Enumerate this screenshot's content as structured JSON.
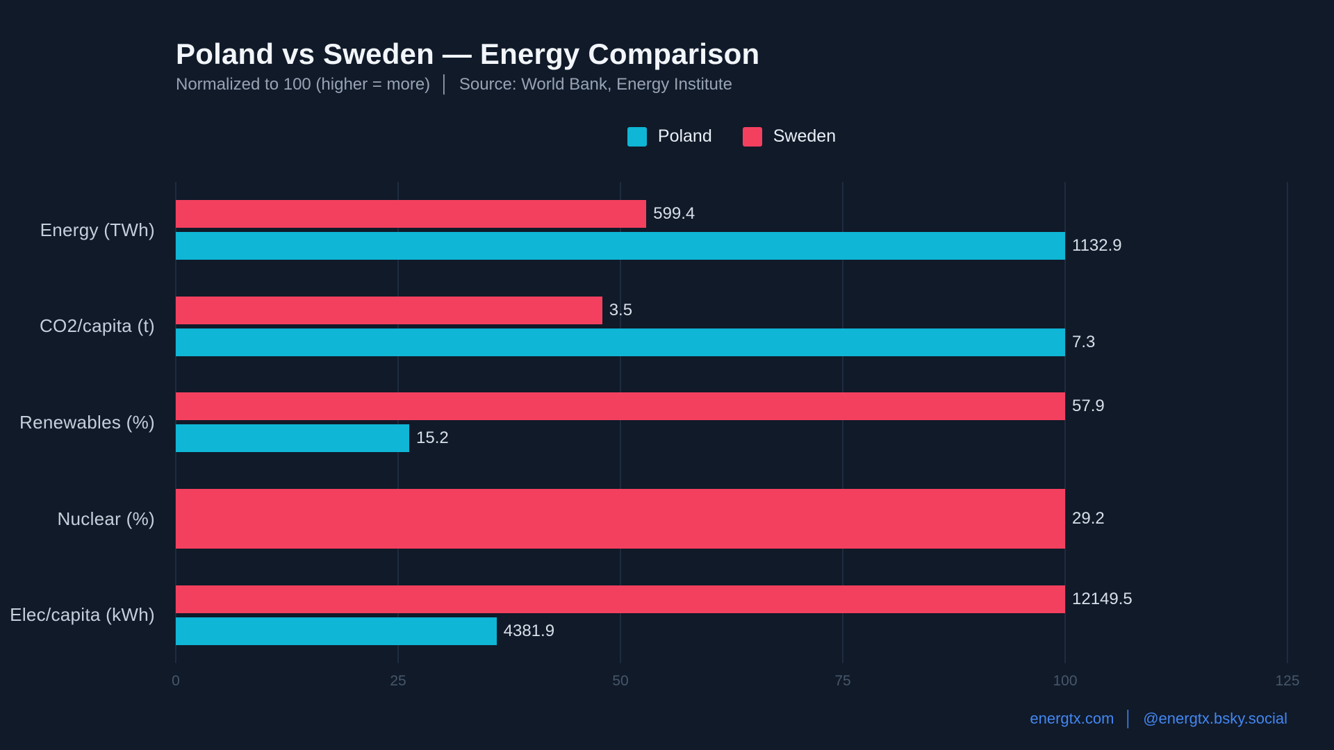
{
  "page": {
    "background": "#101a29"
  },
  "header": {
    "title": "Poland vs Sweden — Energy Comparison",
    "subtitle": "Normalized to 100 (higher = more)  │  Source: World Bank, Energy Institute"
  },
  "legend": {
    "items": [
      {
        "label": "Poland",
        "color": "#0fb6d5"
      },
      {
        "label": "Sweden",
        "color": "#f4405f"
      }
    ]
  },
  "footer": {
    "site": "energtx.com",
    "separator": "│",
    "handle": "@energtx.bsky.social",
    "link_color": "#4486f0"
  },
  "chart_data": {
    "type": "bar",
    "orientation": "horizontal",
    "title": "Poland vs Sweden — Energy Comparison",
    "subtitle": "Normalized to 100 (higher = more) │ Source: World Bank, Energy Institute",
    "categories": [
      "Energy (TWh)",
      "CO2/capita (t)",
      "Renewables (%)",
      "Nuclear (%)",
      "Elec/capita (kWh)"
    ],
    "series": [
      {
        "name": "Poland",
        "color": "#0fb6d5",
        "values": [
          1132.9,
          7.3,
          15.2,
          0,
          4381.9
        ]
      },
      {
        "name": "Sweden",
        "color": "#f4405f",
        "values": [
          599.4,
          3.5,
          57.9,
          29.2,
          12149.5
        ]
      }
    ],
    "bar_order_top_to_bottom": [
      "Sweden",
      "Poland"
    ],
    "normalization": "per-category maximum scaled to 100",
    "value_labels": "raw values shown at bar ends",
    "x_ticks": [
      0,
      25,
      50,
      75,
      100,
      125
    ],
    "xlim": [
      0,
      125
    ],
    "grid": "vertical gridlines at ticks",
    "gridline_color": "#1f2b3f",
    "legend_position": "top-center",
    "background_color": "#101a29"
  }
}
